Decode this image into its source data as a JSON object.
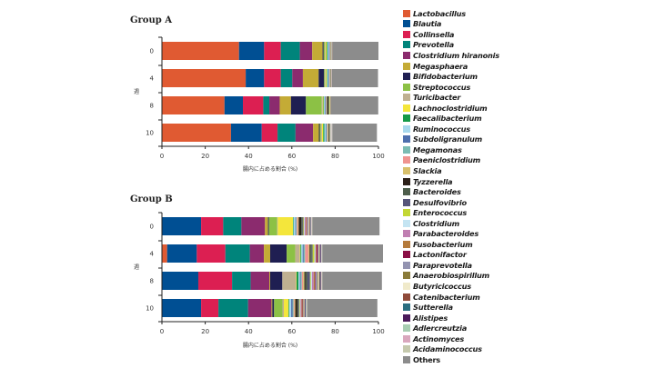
{
  "chart_data": [
    {
      "type": "bar",
      "orientation": "horizontal-stacked",
      "title": "Group A",
      "xlabel": "腸内に占める割合 (%)",
      "ylabel": "週",
      "xlim": [
        0,
        100
      ],
      "xticks": [
        "0",
        "20",
        "40",
        "60",
        "80",
        "100"
      ],
      "categories": [
        "0",
        "4",
        "8",
        "10"
      ],
      "series": [
        {
          "name": "Lactobacillus",
          "values": [
            35.6,
            38.7,
            28.9,
            31.9
          ]
        },
        {
          "name": "Blautia",
          "values": [
            11.6,
            8.5,
            8.5,
            14.2
          ]
        },
        {
          "name": "Collinsella",
          "values": [
            7.7,
            7.7,
            9.4,
            7.3
          ]
        },
        {
          "name": "Prevotella",
          "values": [
            8.8,
            5.3,
            2.8,
            8.3
          ]
        },
        {
          "name": "Clostridium hiranonis",
          "values": [
            5.7,
            4.9,
            4.8,
            8.1
          ]
        },
        {
          "name": "Megasphaera",
          "values": [
            4.8,
            7.3,
            5.2,
            2.7
          ]
        },
        {
          "name": "Bifidobacterium",
          "values": [
            0.5,
            2.5,
            6.9,
            0.4
          ]
        },
        {
          "name": "Streptococcus",
          "values": [
            0.5,
            0.4,
            7.3,
            0.5
          ]
        },
        {
          "name": "Turicibacter",
          "values": [
            0.4,
            0.4,
            0.5,
            0.5
          ]
        },
        {
          "name": "Lachnoclostridium",
          "values": [
            0.5,
            0.4,
            0.3,
            0.6
          ]
        },
        {
          "name": "Faecalibacterium",
          "values": [
            0.4,
            0.3,
            0.3,
            0.5
          ]
        },
        {
          "name": "Ruminococcus",
          "values": [
            0.5,
            0.4,
            0.4,
            0.6
          ]
        },
        {
          "name": "Subdoligranulum",
          "values": [
            0.3,
            0.3,
            0.3,
            0.3
          ]
        },
        {
          "name": "Megamonas",
          "values": [
            0.3,
            0.3,
            0.3,
            0.4
          ]
        },
        {
          "name": "Paeniclostridium",
          "values": [
            0.2,
            0.2,
            0.2,
            0.3
          ]
        },
        {
          "name": "Slackia",
          "values": [
            0.2,
            0.2,
            0.2,
            0.3
          ]
        },
        {
          "name": "Tyzzerella",
          "values": [
            0.1,
            0.1,
            0.6,
            0.3
          ]
        },
        {
          "name": "Bacteroides",
          "values": [
            0.1,
            0.1,
            0.2,
            0.2
          ]
        },
        {
          "name": "Desulfovibrio",
          "values": [
            0.1,
            0.1,
            0.1,
            0.2
          ]
        },
        {
          "name": "Enterococcus",
          "values": [
            0.1,
            0.1,
            0.4,
            0.2
          ]
        },
        {
          "name": "Clostridium",
          "values": [
            0.1,
            0.1,
            0.1,
            0.2
          ]
        },
        {
          "name": "Parabacteroides",
          "values": [
            0.1,
            0.1,
            0.1,
            0.1
          ]
        },
        {
          "name": "Fusobacterium",
          "values": [
            0.1,
            0.1,
            0.1,
            0.1
          ]
        },
        {
          "name": "Lactonifactor",
          "values": [
            0.0,
            0.0,
            0.0,
            0.0
          ]
        },
        {
          "name": "Paraprevotella",
          "values": [
            0.0,
            0.0,
            0.0,
            0.1
          ]
        },
        {
          "name": "Anaerobiospirillum",
          "values": [
            0.0,
            0.0,
            0.0,
            0.0
          ]
        },
        {
          "name": "Butyricicoccus",
          "values": [
            0.0,
            0.0,
            0.0,
            0.1
          ]
        },
        {
          "name": "Catenibacterium",
          "values": [
            0.0,
            0.0,
            0.0,
            0.0
          ]
        },
        {
          "name": "Sutterella",
          "values": [
            0.0,
            0.0,
            0.0,
            0.0
          ]
        },
        {
          "name": "Alistipes",
          "values": [
            0.0,
            0.0,
            0.0,
            0.0
          ]
        },
        {
          "name": "Adlercreutzia",
          "values": [
            0.0,
            0.0,
            0.0,
            0.1
          ]
        },
        {
          "name": "Actinomyces",
          "values": [
            0.0,
            0.0,
            0.0,
            0.1
          ]
        },
        {
          "name": "Acidaminococcus",
          "values": [
            0.0,
            0.0,
            0.0,
            0.1
          ]
        },
        {
          "name": "Others",
          "values": [
            21.3,
            21.3,
            22.0,
            20.6
          ]
        }
      ]
    },
    {
      "type": "bar",
      "orientation": "horizontal-stacked",
      "title": "Group B",
      "xlabel": "腸内に占める割合 (%)",
      "ylabel": "週",
      "xlim": [
        0,
        100
      ],
      "xticks": [
        "0",
        "20",
        "40",
        "60",
        "80",
        "100"
      ],
      "categories": [
        "0",
        "4",
        "8",
        "10"
      ],
      "series": [
        {
          "name": "Lactobacillus",
          "values": [
            0.0,
            2.4,
            0.0,
            0.0
          ]
        },
        {
          "name": "Blautia",
          "values": [
            18.1,
            13.7,
            16.8,
            18.1
          ]
        },
        {
          "name": "Collinsella",
          "values": [
            10.2,
            13.2,
            15.6,
            8.0
          ]
        },
        {
          "name": "Prevotella",
          "values": [
            8.4,
            11.3,
            8.6,
            13.7
          ]
        },
        {
          "name": "Clostridium hiranonis",
          "values": [
            10.9,
            6.5,
            8.6,
            10.8
          ]
        },
        {
          "name": "Megasphaera",
          "values": [
            1.4,
            2.9,
            0.4,
            0.4
          ]
        },
        {
          "name": "Bifidobacterium",
          "values": [
            0.4,
            7.6,
            5.6,
            0.8
          ]
        },
        {
          "name": "Streptococcus",
          "values": [
            3.8,
            4.0,
            0.0,
            3.9
          ]
        },
        {
          "name": "Turicibacter",
          "values": [
            0.3,
            2.1,
            6.4,
            0.6
          ]
        },
        {
          "name": "Lachnoclostridium",
          "values": [
            7.0,
            0.3,
            0.2,
            2.2
          ]
        },
        {
          "name": "Faecalibacterium",
          "values": [
            0.3,
            0.4,
            0.9,
            0.3
          ]
        },
        {
          "name": "Ruminococcus",
          "values": [
            0.8,
            0.6,
            0.6,
            0.9
          ]
        },
        {
          "name": "Subdoligranulum",
          "values": [
            0.3,
            0.5,
            0.4,
            0.6
          ]
        },
        {
          "name": "Megamonas",
          "values": [
            0.4,
            0.6,
            0.5,
            0.5
          ]
        },
        {
          "name": "Paeniclostridium",
          "values": [
            0.5,
            1.6,
            0.6,
            0.4
          ]
        },
        {
          "name": "Slackia",
          "values": [
            0.4,
            0.5,
            0.6,
            0.4
          ]
        },
        {
          "name": "Tyzzerella",
          "values": [
            1.2,
            0.4,
            0.4,
            0.8
          ]
        },
        {
          "name": "Bacteroides",
          "values": [
            0.6,
            0.6,
            1.0,
            0.7
          ]
        },
        {
          "name": "Desulfovibrio",
          "values": [
            0.3,
            0.4,
            1.2,
            0.3
          ]
        },
        {
          "name": "Enterococcus",
          "values": [
            0.3,
            0.8,
            0.4,
            0.3
          ]
        },
        {
          "name": "Clostridium",
          "values": [
            0.3,
            0.4,
            0.5,
            0.3
          ]
        },
        {
          "name": "Parabacteroides",
          "values": [
            0.6,
            0.3,
            0.8,
            0.5
          ]
        },
        {
          "name": "Fusobacterium",
          "values": [
            0.4,
            0.3,
            0.5,
            0.4
          ]
        },
        {
          "name": "Lactonifactor",
          "values": [
            0.2,
            0.6,
            0.3,
            0.2
          ]
        },
        {
          "name": "Paraprevotella",
          "values": [
            0.5,
            0.3,
            0.8,
            0.2
          ]
        },
        {
          "name": "Anaerobiospirillum",
          "values": [
            0.2,
            0.2,
            0.4,
            0.2
          ]
        },
        {
          "name": "Butyricicoccus",
          "values": [
            0.3,
            0.3,
            0.5,
            0.3
          ]
        },
        {
          "name": "Catenibacterium",
          "values": [
            0.3,
            0.2,
            0.3,
            0.2
          ]
        },
        {
          "name": "Sutterella",
          "values": [
            0.2,
            0.2,
            0.2,
            0.2
          ]
        },
        {
          "name": "Alistipes",
          "values": [
            0.2,
            0.3,
            0.3,
            0.2
          ]
        },
        {
          "name": "Adlercreutzia",
          "values": [
            0.2,
            0.2,
            0.2,
            0.2
          ]
        },
        {
          "name": "Actinomyces",
          "values": [
            0.2,
            0.2,
            0.2,
            0.2
          ]
        },
        {
          "name": "Acidaminococcus",
          "values": [
            0.3,
            0.2,
            0.3,
            0.3
          ]
        },
        {
          "name": "Others",
          "values": [
            31.0,
            28.0,
            27.5,
            32.4
          ]
        }
      ]
    }
  ],
  "legend": {
    "placement": "right",
    "items": [
      {
        "label": "Lactobacillus",
        "color": "#e05a32",
        "italic": true
      },
      {
        "label": "Blautia",
        "color": "#004f93",
        "italic": true
      },
      {
        "label": "Collinsella",
        "color": "#dc1f52",
        "italic": true
      },
      {
        "label": "Prevotella",
        "color": "#00847b",
        "italic": true
      },
      {
        "label": "Clostridium hiranonis",
        "color": "#8b2b6e",
        "italic": true
      },
      {
        "label": "Megasphaera",
        "color": "#c4ab36",
        "italic": true
      },
      {
        "label": "Bifidobacterium",
        "color": "#1f1f52",
        "italic": true
      },
      {
        "label": "Streptococcus",
        "color": "#8cc145",
        "italic": true
      },
      {
        "label": "Turicibacter",
        "color": "#bfb091",
        "italic": true
      },
      {
        "label": "Lachnoclostridium",
        "color": "#f4e63b",
        "italic": true
      },
      {
        "label": "Faecalibacterium",
        "color": "#159a48",
        "italic": true
      },
      {
        "label": "Ruminococcus",
        "color": "#a8d8ec",
        "italic": true
      },
      {
        "label": "Subdoligranulum",
        "color": "#4e6fad",
        "italic": true
      },
      {
        "label": "Megamonas",
        "color": "#7bbcb3",
        "italic": true
      },
      {
        "label": "Paeniclostridium",
        "color": "#ef9490",
        "italic": true
      },
      {
        "label": "Slackia",
        "color": "#d8c06b",
        "italic": true
      },
      {
        "label": "Tyzzerella",
        "color": "#2c2019",
        "italic": true
      },
      {
        "label": "Bacteroides",
        "color": "#4e5e4b",
        "italic": true
      },
      {
        "label": "Desulfovibrio",
        "color": "#56557a",
        "italic": true
      },
      {
        "label": "Enterococcus",
        "color": "#c3d734",
        "italic": true
      },
      {
        "label": "Clostridium",
        "color": "#c4e4f2",
        "italic": true
      },
      {
        "label": "Parabacteroides",
        "color": "#c07fb2",
        "italic": true
      },
      {
        "label": "Fusobacterium",
        "color": "#b57b3c",
        "italic": true
      },
      {
        "label": "Lactonifactor",
        "color": "#8a0f45",
        "italic": true
      },
      {
        "label": "Paraprevotella",
        "color": "#9494b1",
        "italic": true
      },
      {
        "label": "Anaerobiospirillum",
        "color": "#8a7b3a",
        "italic": true
      },
      {
        "label": "Butyricicoccus",
        "color": "#f0eacb",
        "italic": true
      },
      {
        "label": "Catenibacterium",
        "color": "#8f4a3a",
        "italic": true
      },
      {
        "label": "Sutterella",
        "color": "#2b6e80",
        "italic": true
      },
      {
        "label": "Alistipes",
        "color": "#4b1b5b",
        "italic": true
      },
      {
        "label": "Adlercreutzia",
        "color": "#a8cdb2",
        "italic": true
      },
      {
        "label": "Actinomyces",
        "color": "#d9a7bd",
        "italic": true
      },
      {
        "label": "Acidaminococcus",
        "color": "#c5c9ad",
        "italic": true
      },
      {
        "label": "Others",
        "color": "#8c8c8c",
        "italic": false
      }
    ]
  }
}
